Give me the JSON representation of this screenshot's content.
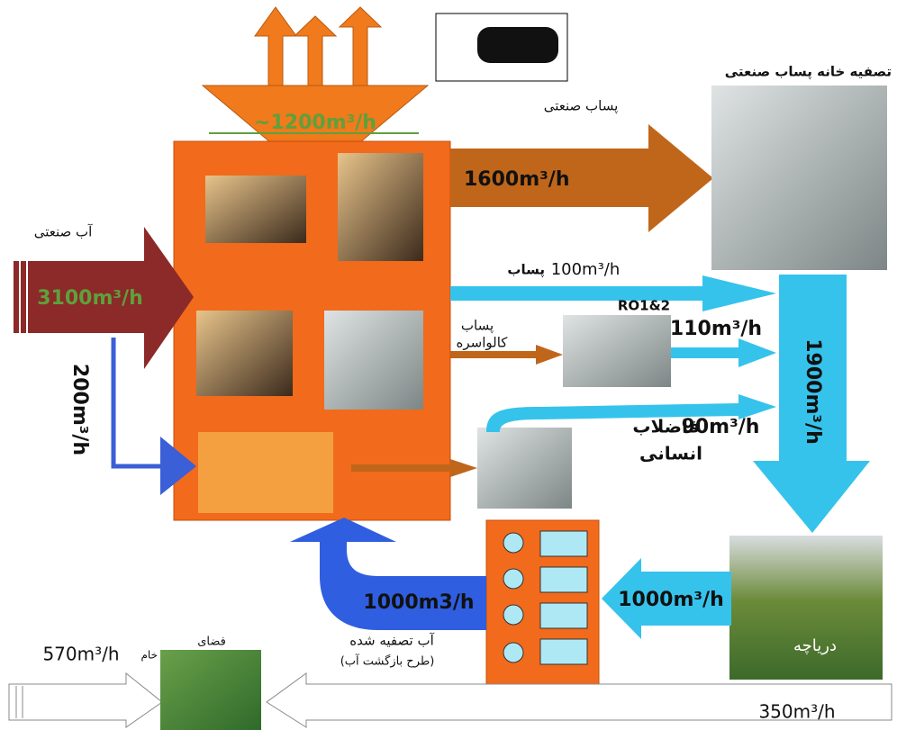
{
  "exhaust": {
    "flow": "~1200m³/h"
  },
  "industrial_wastewater": {
    "label": "پساب صنعتی",
    "flow": "1600m³/h"
  },
  "treatment_plant": {
    "label": "تصفیه خانه پساب صنعتی"
  },
  "industrial_water": {
    "label": "آب صنعتی",
    "flow": "3100m³/h"
  },
  "branch": {
    "flow": "200m³/h"
  },
  "ro_wastewater": {
    "flow": "100m³/h",
    "label": "پساب"
  },
  "ro": {
    "label": "RO1&2",
    "flow": "110m³/h"
  },
  "galvanizing": {
    "label_1": "پساب",
    "label_2": "کالواسره"
  },
  "sanitary": {
    "flow": "90m³/h",
    "label_1": "فاضلاب",
    "label_2": "انسانی"
  },
  "to_lake": {
    "flow": "1900m³/h"
  },
  "lake": {
    "label": "دریاچه",
    "outflow": "1000m³/h"
  },
  "return": {
    "flow": "1000m3/h",
    "label_1": "آب تصفیه شده",
    "label_2": "(طرح بازگشت آب)"
  },
  "green_space": {
    "label": "فضای",
    "raw": "خام",
    "flow": "570m³/h"
  },
  "irrigation": {
    "flow": "350m³/h"
  }
}
